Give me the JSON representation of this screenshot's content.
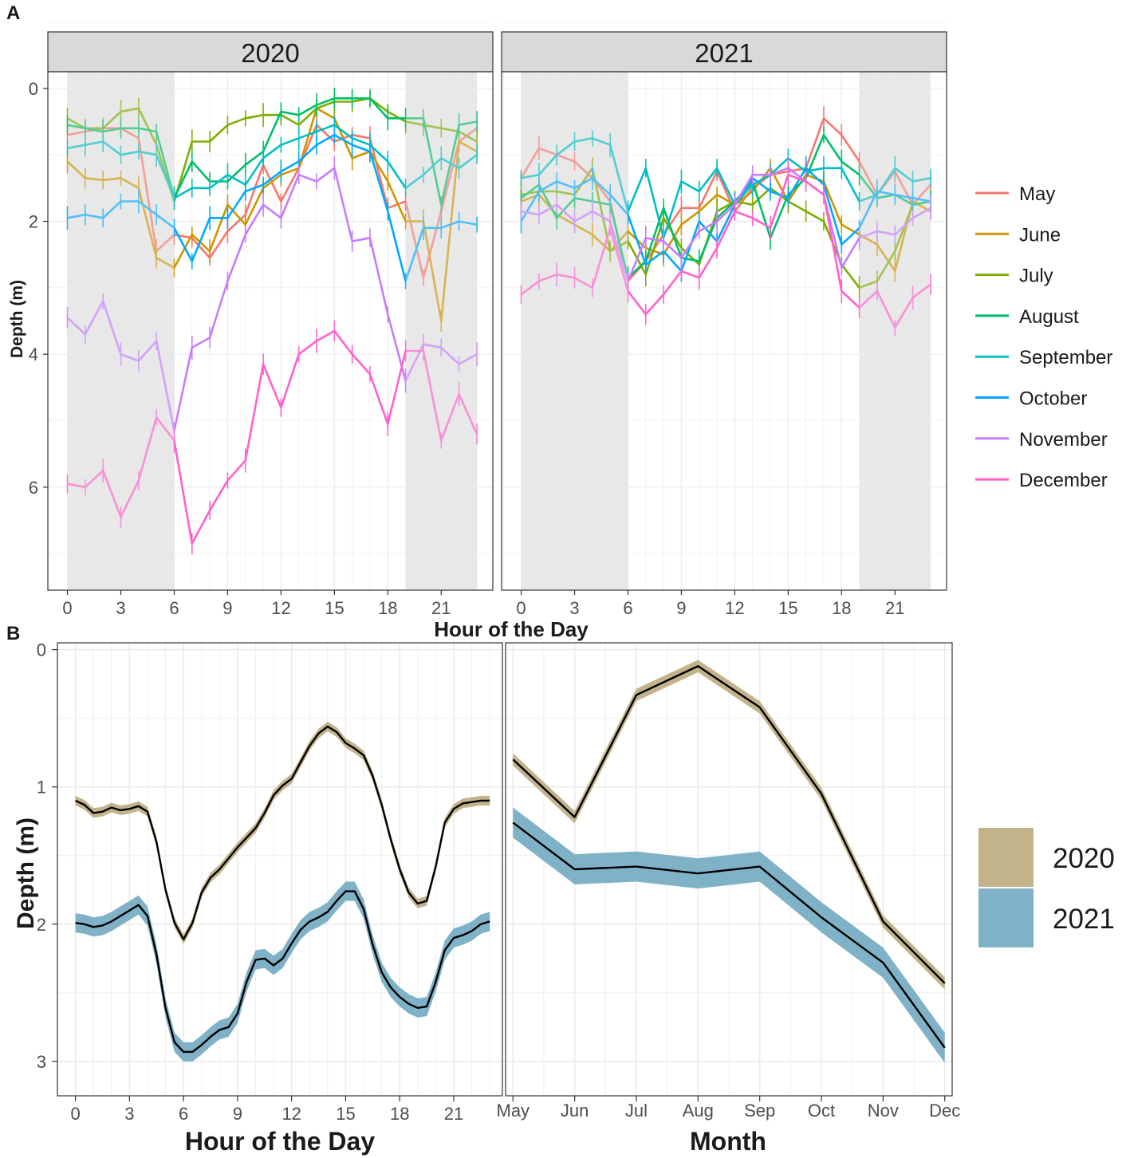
{
  "chart_data": [
    {
      "id": "A",
      "type": "line",
      "panel_label": "A",
      "xlabel": "Hour of the Day",
      "ylabel": "Depth (m)",
      "y_reversed": true,
      "xlim": [
        -1.1,
        23.9
      ],
      "ylim": [
        -0.25,
        7.55
      ],
      "xticks": [
        0,
        3,
        6,
        9,
        12,
        15,
        18,
        21
      ],
      "xtick_labels": [
        "0",
        "3",
        "6",
        "9",
        "12",
        "15",
        "18",
        "21"
      ],
      "yticks": [
        0,
        2,
        4,
        6
      ],
      "ytick_labels": [
        "0",
        "2",
        "4",
        "6"
      ],
      "night_shading": [
        [
          0,
          6
        ],
        [
          19,
          23
        ]
      ],
      "legend": [
        {
          "label": "May",
          "color": "#F8766D"
        },
        {
          "label": "June",
          "color": "#CD9600"
        },
        {
          "label": "July",
          "color": "#7CAE00"
        },
        {
          "label": "August",
          "color": "#00BE67"
        },
        {
          "label": "September",
          "color": "#00BFC4"
        },
        {
          "label": "October",
          "color": "#00A9FF"
        },
        {
          "label": "November",
          "color": "#C77CFF"
        },
        {
          "label": "December",
          "color": "#FF61CC"
        }
      ],
      "facets": [
        {
          "strip": "2020",
          "series": [
            {
              "name": "May",
              "color": "#F8766D",
              "values": [
                0.7,
                0.65,
                0.6,
                0.6,
                0.75,
                2.45,
                2.2,
                2.25,
                2.55,
                2.15,
                1.9,
                1.15,
                1.7,
                1.2,
                0.55,
                0.8,
                0.7,
                0.75,
                1.8,
                1.7,
                2.85,
                1.85,
                0.8,
                0.6
              ]
            },
            {
              "name": "June",
              "color": "#CD9600",
              "values": [
                1.1,
                1.35,
                1.38,
                1.35,
                1.5,
                2.55,
                2.7,
                2.2,
                2.45,
                1.75,
                2.05,
                1.5,
                1.3,
                1.2,
                0.3,
                0.45,
                1.05,
                0.95,
                1.4,
                2.0,
                2.0,
                3.5,
                0.8,
                0.95
              ]
            },
            {
              "name": "July",
              "color": "#7CAE00",
              "values": [
                0.45,
                0.6,
                0.6,
                0.35,
                0.3,
                0.85,
                1.7,
                0.8,
                0.8,
                0.55,
                0.45,
                0.4,
                0.4,
                0.55,
                0.3,
                0.2,
                0.2,
                0.15,
                0.35,
                0.5,
                0.55,
                0.6,
                0.65,
                0.8
              ]
            },
            {
              "name": "August",
              "color": "#00BE67",
              "values": [
                0.55,
                0.6,
                0.65,
                0.6,
                0.6,
                0.65,
                1.65,
                1.1,
                1.4,
                1.4,
                1.15,
                0.95,
                0.35,
                0.4,
                0.25,
                0.15,
                0.15,
                0.15,
                0.45,
                0.45,
                0.45,
                1.75,
                0.55,
                0.5
              ]
            },
            {
              "name": "September",
              "color": "#00BFC4",
              "values": [
                0.9,
                0.85,
                0.8,
                1.0,
                0.95,
                1.0,
                1.65,
                1.5,
                1.5,
                1.3,
                1.45,
                1.05,
                0.85,
                0.75,
                0.65,
                0.55,
                0.75,
                0.85,
                1.1,
                1.5,
                1.3,
                1.05,
                1.2,
                1.0
              ]
            },
            {
              "name": "October",
              "color": "#00A9FF",
              "values": [
                1.95,
                1.9,
                1.95,
                1.7,
                1.7,
                1.9,
                2.1,
                2.6,
                1.95,
                1.95,
                1.55,
                1.45,
                1.25,
                1.1,
                0.85,
                0.7,
                0.85,
                0.95,
                1.85,
                2.9,
                2.1,
                2.1,
                2.0,
                2.05
              ]
            },
            {
              "name": "November",
              "color": "#C77CFF",
              "values": [
                3.45,
                3.7,
                3.2,
                4.0,
                4.1,
                3.8,
                5.15,
                3.9,
                3.75,
                2.9,
                2.2,
                1.75,
                1.95,
                1.3,
                1.4,
                1.2,
                2.3,
                2.25,
                3.4,
                4.4,
                3.85,
                3.9,
                4.15,
                4.0
              ]
            },
            {
              "name": "December",
              "color": "#FF61CC",
              "values": [
                5.95,
                6.0,
                5.75,
                6.45,
                5.9,
                4.95,
                5.3,
                6.85,
                6.35,
                5.9,
                5.6,
                4.15,
                4.8,
                4.0,
                3.8,
                3.65,
                4.0,
                4.3,
                5.05,
                3.95,
                3.95,
                5.3,
                4.6,
                5.2
              ]
            }
          ]
        },
        {
          "strip": "2021",
          "series": [
            {
              "name": "May",
              "color": "#F8766D",
              "values": [
                1.35,
                0.9,
                1.0,
                1.1,
                1.35,
                1.7,
                2.9,
                2.6,
                2.2,
                1.8,
                1.8,
                1.25,
                1.85,
                1.5,
                1.3,
                1.25,
                1.2,
                0.45,
                0.7,
                1.1,
                1.6,
                1.25,
                1.75,
                1.45
              ]
            },
            {
              "name": "June",
              "color": "#CD9600",
              "values": [
                1.7,
                1.6,
                1.9,
                2.05,
                2.2,
                2.45,
                2.15,
                2.4,
                2.5,
                2.05,
                1.85,
                1.6,
                1.75,
                1.55,
                1.2,
                1.7,
                1.3,
                1.4,
                2.05,
                2.2,
                2.35,
                2.75,
                1.7,
                1.85
              ]
            },
            {
              "name": "July",
              "color": "#7CAE00",
              "values": [
                1.6,
                1.55,
                1.55,
                1.6,
                1.2,
                2.45,
                2.3,
                2.8,
                1.95,
                2.4,
                2.65,
                1.85,
                1.7,
                1.75,
                1.5,
                1.7,
                1.85,
                2.0,
                2.65,
                3.0,
                2.9,
                2.45,
                1.75,
                1.7
              ]
            },
            {
              "name": "August",
              "color": "#00BE67",
              "values": [
                1.65,
                1.45,
                1.95,
                1.65,
                1.7,
                1.75,
                2.85,
                2.6,
                1.8,
                2.55,
                2.6,
                1.95,
                1.7,
                1.4,
                2.25,
                1.6,
                1.35,
                0.7,
                1.1,
                1.3,
                1.65,
                1.6,
                1.75,
                1.7
              ]
            },
            {
              "name": "September",
              "color": "#00BFC4",
              "values": [
                1.35,
                1.3,
                1.0,
                0.8,
                0.75,
                0.85,
                1.85,
                1.2,
                2.25,
                1.4,
                1.55,
                1.2,
                1.75,
                1.45,
                1.3,
                1.05,
                1.25,
                1.2,
                1.2,
                1.7,
                1.6,
                1.2,
                1.4,
                1.35
              ]
            },
            {
              "name": "October",
              "color": "#00A9FF",
              "values": [
                2.0,
                1.55,
                1.4,
                1.5,
                1.35,
                1.6,
                1.9,
                2.65,
                2.45,
                2.75,
                2.0,
                2.3,
                1.75,
                1.35,
                1.55,
                1.65,
                1.2,
                1.45,
                2.35,
                2.1,
                1.55,
                1.6,
                1.65,
                1.7
              ]
            },
            {
              "name": "November",
              "color": "#C77CFF",
              "values": [
                1.85,
                1.9,
                1.75,
                2.0,
                1.85,
                2.0,
                2.9,
                2.25,
                2.3,
                2.55,
                2.15,
                2.0,
                1.75,
                1.3,
                1.3,
                1.2,
                1.4,
                1.6,
                2.7,
                2.25,
                2.15,
                2.2,
                1.95,
                1.8
              ]
            },
            {
              "name": "December",
              "color": "#FF61CC",
              "values": [
                3.1,
                2.9,
                2.8,
                2.85,
                3.0,
                2.1,
                3.05,
                3.4,
                3.1,
                2.75,
                2.85,
                2.4,
                1.85,
                1.95,
                2.1,
                1.3,
                1.4,
                1.6,
                3.05,
                3.3,
                3.05,
                3.6,
                3.15,
                2.95
              ]
            }
          ]
        }
      ]
    },
    {
      "id": "B",
      "type": "line",
      "panel_label": "B",
      "ylabel": "Depth (m)",
      "y_reversed": true,
      "yticks": [
        0,
        1,
        2,
        3
      ],
      "ytick_labels": [
        "0",
        "1",
        "2",
        "3"
      ],
      "legend": [
        {
          "label": "2020",
          "color": "#C2B38A"
        },
        {
          "label": "2021",
          "color": "#7FB2C7"
        }
      ],
      "subplots": [
        {
          "xlabel": "Hour of the Day",
          "xlim": [
            -1.0,
            23.7
          ],
          "ylim": [
            -0.05,
            3.25
          ],
          "xticks": [
            0,
            3,
            6,
            9,
            12,
            15,
            18,
            21
          ],
          "xtick_labels": [
            "0",
            "3",
            "6",
            "9",
            "12",
            "15",
            "18",
            "21"
          ],
          "series": [
            {
              "name": "2020",
              "band_color": "#C2B38A",
              "band_halfwidth": 0.035,
              "x": [
                0,
                0.5,
                1,
                1.5,
                2,
                2.5,
                3,
                3.5,
                4,
                4.5,
                5,
                5.5,
                6,
                6.5,
                7,
                7.5,
                8,
                8.5,
                9,
                9.5,
                10,
                10.5,
                11,
                11.5,
                12,
                12.5,
                13,
                13.5,
                14,
                14.5,
                15,
                15.5,
                16,
                16.5,
                17,
                17.5,
                18,
                18.5,
                19,
                19.5,
                20,
                20.5,
                21,
                21.5,
                22,
                22.5,
                23
              ],
              "y": [
                1.1,
                1.13,
                1.19,
                1.18,
                1.15,
                1.17,
                1.16,
                1.14,
                1.18,
                1.4,
                1.75,
                1.99,
                2.11,
                1.99,
                1.77,
                1.66,
                1.6,
                1.52,
                1.44,
                1.37,
                1.3,
                1.19,
                1.06,
                0.99,
                0.94,
                0.82,
                0.7,
                0.61,
                0.56,
                0.6,
                0.68,
                0.72,
                0.77,
                0.92,
                1.13,
                1.38,
                1.6,
                1.77,
                1.85,
                1.83,
                1.58,
                1.26,
                1.16,
                1.12,
                1.11,
                1.1,
                1.1
              ]
            },
            {
              "name": "2021",
              "band_color": "#7FB2C7",
              "band_halfwidth": 0.07,
              "x": [
                0,
                0.5,
                1,
                1.5,
                2,
                2.5,
                3,
                3.5,
                4,
                4.5,
                5,
                5.5,
                6,
                6.5,
                7,
                7.5,
                8,
                8.5,
                9,
                9.5,
                10,
                10.5,
                11,
                11.5,
                12,
                12.5,
                13,
                13.5,
                14,
                14.5,
                15,
                15.5,
                16,
                16.5,
                17,
                17.5,
                18,
                18.5,
                19,
                19.5,
                20,
                20.5,
                21,
                21.5,
                22,
                22.5,
                23
              ],
              "y": [
                1.99,
                2.0,
                2.02,
                2.01,
                1.98,
                1.94,
                1.9,
                1.86,
                1.94,
                2.22,
                2.61,
                2.86,
                2.93,
                2.93,
                2.88,
                2.82,
                2.77,
                2.75,
                2.65,
                2.42,
                2.26,
                2.25,
                2.3,
                2.25,
                2.14,
                2.04,
                1.98,
                1.95,
                1.91,
                1.83,
                1.76,
                1.76,
                1.89,
                2.15,
                2.35,
                2.46,
                2.53,
                2.58,
                2.61,
                2.6,
                2.42,
                2.19,
                2.1,
                2.08,
                2.05,
                2.0,
                1.98
              ]
            }
          ]
        },
        {
          "xlabel": "Month",
          "xlim": [
            -0.12,
            7.12
          ],
          "ylim": [
            -0.05,
            3.25
          ],
          "categories": [
            "May",
            "Jun",
            "Jul",
            "Aug",
            "Sep",
            "Oct",
            "Nov",
            "Dec"
          ],
          "series": [
            {
              "name": "2020",
              "band_color": "#C2B38A",
              "band_halfwidth": 0.045,
              "values": [
                0.8,
                1.22,
                0.33,
                0.12,
                0.42,
                1.05,
                1.98,
                2.43
              ]
            },
            {
              "name": "2021",
              "band_color": "#7FB2C7",
              "band_halfwidth": 0.11,
              "values": [
                1.26,
                1.6,
                1.58,
                1.63,
                1.58,
                1.95,
                2.28,
                2.9
              ]
            }
          ]
        }
      ]
    }
  ]
}
